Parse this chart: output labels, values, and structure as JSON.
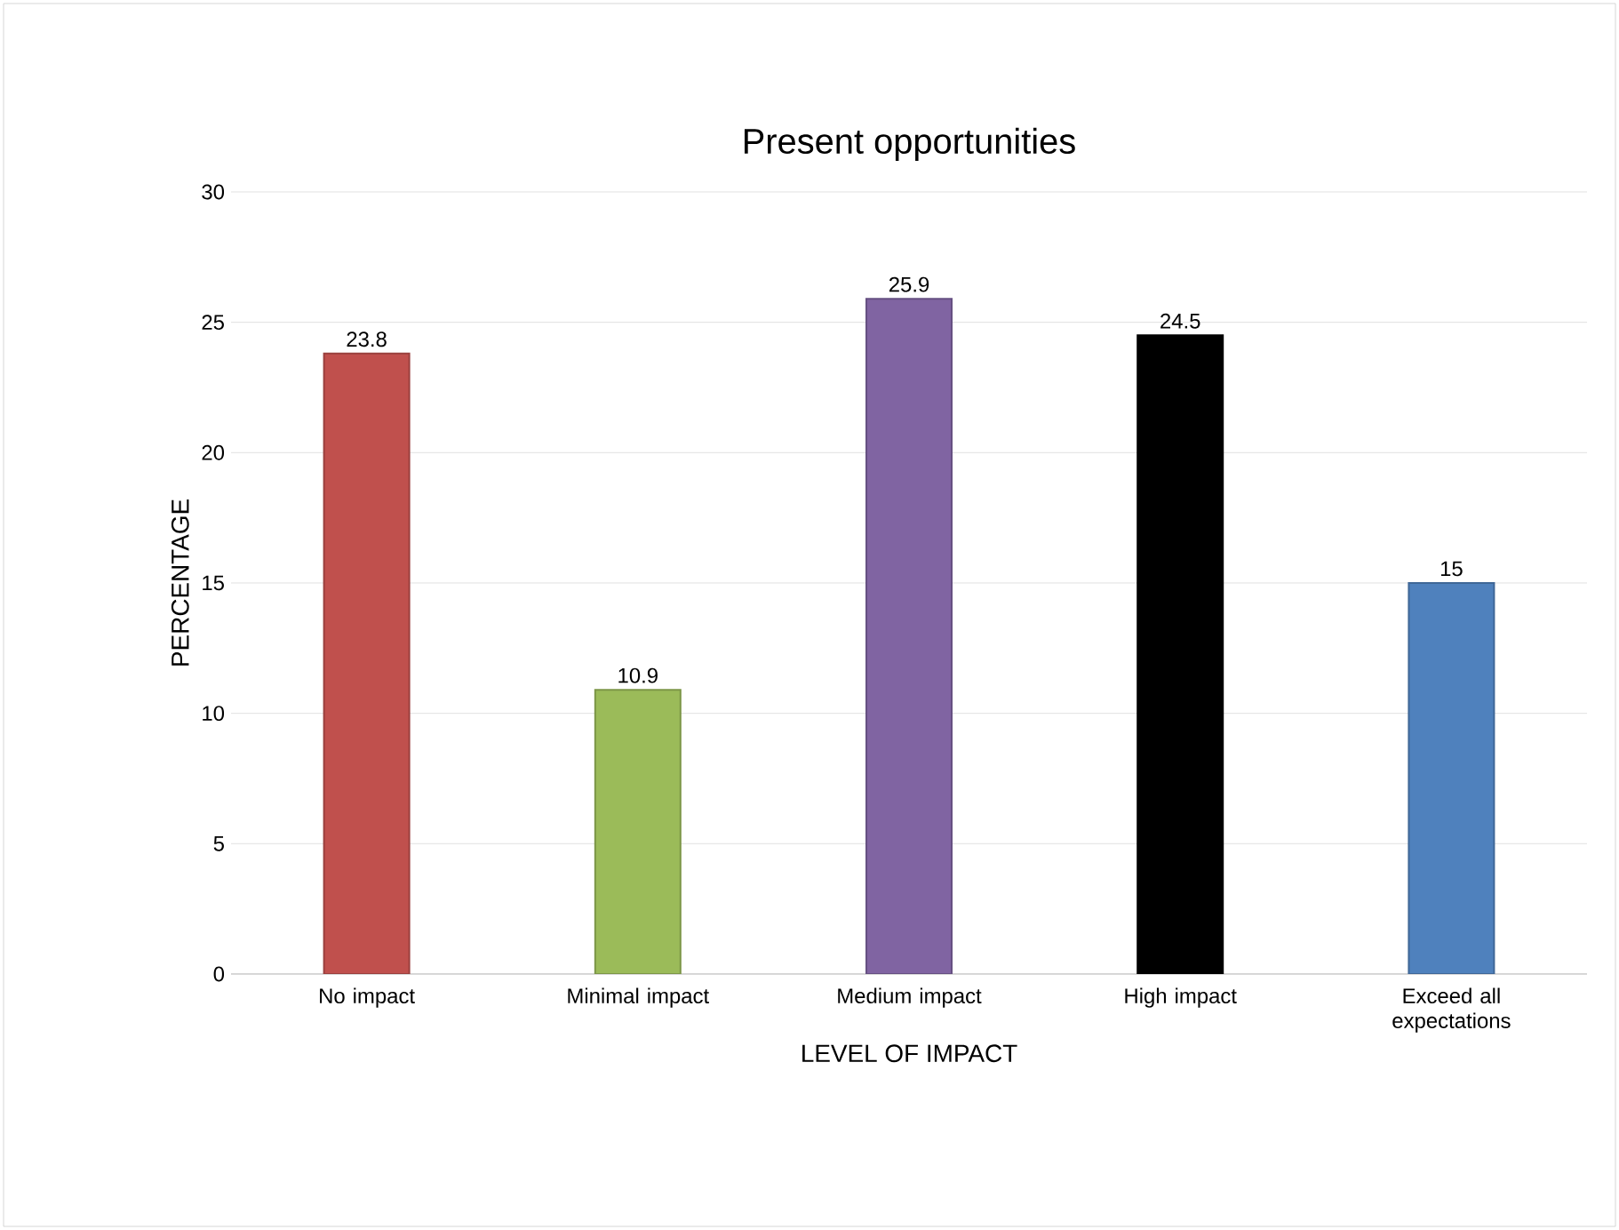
{
  "chart_data": {
    "type": "bar",
    "title": "Present opportunities",
    "xlabel": "LEVEL OF IMPACT",
    "ylabel": "PERCENTAGE",
    "categories": [
      "No impact",
      "Minimal impact",
      "Medium impact",
      "High impact",
      "Exceed all expectations"
    ],
    "values": [
      23.8,
      10.9,
      25.9,
      24.5,
      15
    ],
    "colors": [
      "#c0504d",
      "#9bbb59",
      "#8064a2",
      "#000000",
      "#4f81bd"
    ],
    "ylim": [
      0,
      30
    ],
    "yticks": [
      0,
      5,
      10,
      15,
      20,
      25,
      30
    ],
    "grid": "y",
    "data_labels": true
  }
}
